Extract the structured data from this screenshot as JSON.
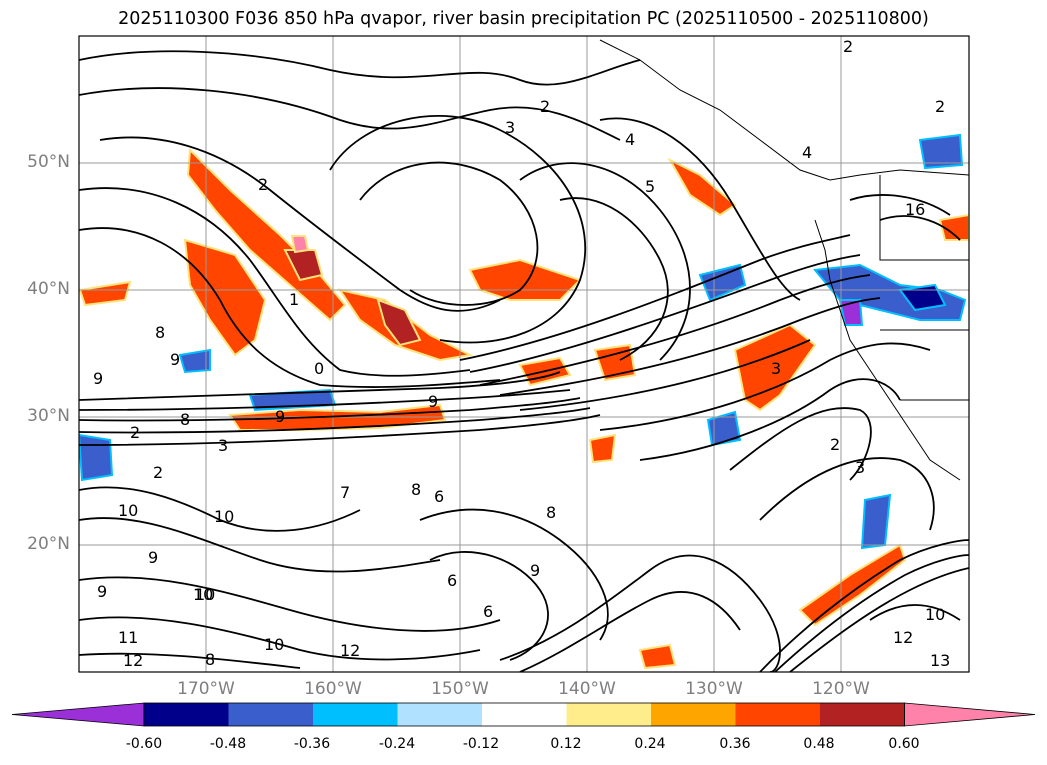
{
  "title": "2025110300 F036 850 hPa qvapor, river basin precipitation PC (2025110500 - 2025110800)",
  "lat_labels": [
    "50°N",
    "40°N",
    "30°N",
    "20°N"
  ],
  "lon_labels": [
    "170°W",
    "160°W",
    "150°W",
    "140°W",
    "130°W",
    "120°W"
  ],
  "colorbar": {
    "tick_labels": [
      "-0.60",
      "-0.48",
      "-0.36",
      "-0.24",
      "-0.12",
      "0.12",
      "0.24",
      "0.36",
      "0.48",
      "0.60"
    ],
    "colors": [
      "#9b30d9",
      "#00008b",
      "#3a5fcd",
      "#00bfff",
      "#b0e2ff",
      "#ffffff",
      "#ffec8b",
      "#ffa500",
      "#ff4500",
      "#b22222",
      "#ff82ab"
    ]
  },
  "contour_labels": [
    "2",
    "3",
    "4",
    "5",
    "2",
    "2",
    "1",
    "0",
    "8",
    "9",
    "9",
    "8",
    "2",
    "3",
    "9",
    "10",
    "10",
    "9",
    "9",
    "11",
    "12",
    "2",
    "8",
    "10",
    "12",
    "10",
    "6",
    "6",
    "9",
    "8",
    "9",
    "6",
    "7",
    "10",
    "2",
    "3",
    "2",
    "3",
    "4",
    "16",
    "10",
    "12",
    "13",
    "8"
  ]
}
